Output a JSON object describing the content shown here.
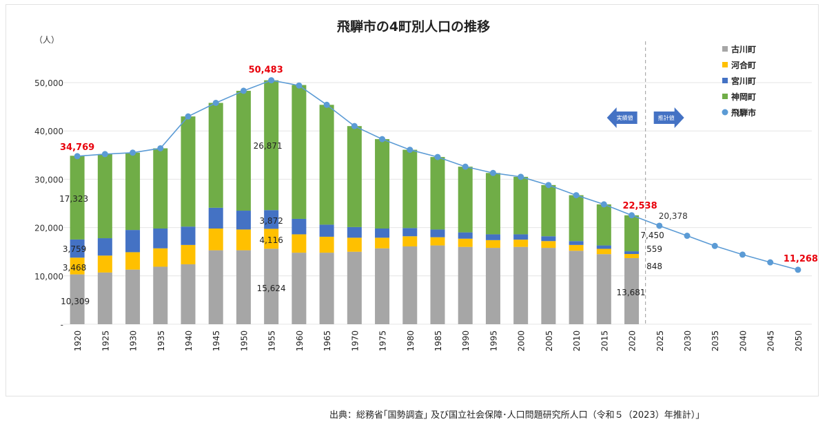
{
  "chart_data": {
    "type": "bar",
    "title": "飛騨市の4町別人口の推移",
    "ylabel": "（人）",
    "ylim": [
      0,
      60000
    ],
    "yticks": [
      0,
      10000,
      20000,
      30000,
      40000,
      50000
    ],
    "ytick_labels": [
      "-",
      "10,000",
      "20,000",
      "30,000",
      "40,000",
      "50,000"
    ],
    "categories": [
      "1920",
      "1925",
      "1930",
      "1935",
      "1940",
      "1945",
      "1950",
      "1955",
      "1960",
      "1965",
      "1970",
      "1975",
      "1980",
      "1985",
      "1990",
      "1995",
      "2000",
      "2005",
      "2010",
      "2015",
      "2020",
      "2025",
      "2030",
      "2035",
      "2040",
      "2045",
      "2050"
    ],
    "series": [
      {
        "name": "古川町",
        "color": "#a6a6a6",
        "values": [
          10309,
          10700,
          11300,
          11900,
          12400,
          15300,
          15300,
          15624,
          14800,
          14800,
          15000,
          15700,
          16100,
          16300,
          16000,
          15800,
          16000,
          15800,
          15200,
          14500,
          13681,
          null,
          null,
          null,
          null,
          null,
          null
        ]
      },
      {
        "name": "河合町",
        "color": "#ffc000",
        "values": [
          3468,
          3500,
          3600,
          3800,
          4000,
          4500,
          4300,
          4116,
          3800,
          3300,
          2900,
          2200,
          2100,
          1700,
          1700,
          1600,
          1500,
          1400,
          1200,
          1100,
          848,
          null,
          null,
          null,
          null,
          null,
          null
        ]
      },
      {
        "name": "宮川町",
        "color": "#4472c4",
        "values": [
          3759,
          3600,
          4600,
          4100,
          3800,
          4300,
          3900,
          3872,
          3200,
          2500,
          2200,
          1900,
          1700,
          1600,
          1300,
          1200,
          1100,
          1000,
          800,
          700,
          559,
          null,
          null,
          null,
          null,
          null,
          null
        ]
      },
      {
        "name": "神岡町",
        "color": "#70ad47",
        "values": [
          17323,
          17400,
          16000,
          16600,
          22800,
          21700,
          24800,
          26871,
          27700,
          24800,
          20900,
          18500,
          16200,
          15000,
          13600,
          12700,
          11900,
          10600,
          9500,
          8500,
          7450,
          null,
          null,
          null,
          null,
          null,
          null
        ]
      }
    ],
    "line": {
      "name": "飛騨市",
      "color": "#5b9bd5",
      "values": [
        34769,
        35200,
        35500,
        36400,
        43000,
        45800,
        48300,
        50483,
        49400,
        45400,
        41000,
        38300,
        36100,
        34600,
        32600,
        31300,
        30500,
        28800,
        26700,
        24800,
        22538,
        20378,
        18300,
        16200,
        14400,
        12800,
        11268
      ]
    },
    "bar_labels": [
      {
        "text": "10,309",
        "cat": "1920",
        "series": "古川町"
      },
      {
        "text": "3,468",
        "cat": "1920",
        "series": "河合町"
      },
      {
        "text": "3,759",
        "cat": "1920",
        "series": "宮川町"
      },
      {
        "text": "17,323",
        "cat": "1920",
        "series": "神岡町"
      },
      {
        "text": "15,624",
        "cat": "1955",
        "series": "古川町"
      },
      {
        "text": "4,116",
        "cat": "1955",
        "series": "河合町"
      },
      {
        "text": "3,872",
        "cat": "1955",
        "series": "宮川町"
      },
      {
        "text": "26,871",
        "cat": "1955",
        "series": "神岡町"
      },
      {
        "text": "13,681",
        "cat": "2020",
        "series": "古川町"
      },
      {
        "text": "848",
        "cat": "2020",
        "series": "河合町"
      },
      {
        "text": "559",
        "cat": "2020",
        "series": "宮川町"
      },
      {
        "text": "7,450",
        "cat": "2020",
        "series": "神岡町"
      }
    ],
    "highlight_labels": [
      {
        "text": "34,769",
        "cat": "1920"
      },
      {
        "text": "50,483",
        "cat": "1955"
      },
      {
        "text": "22,538",
        "cat": "2020"
      },
      {
        "text": "11,268",
        "cat": "2050"
      }
    ],
    "line_labels": [
      {
        "text": "20,378",
        "cat": "2025"
      }
    ],
    "arrows": {
      "left": "実績値",
      "right": "推計値"
    },
    "highlight_color": "#e8000b",
    "legend_position": "top-right"
  },
  "source": "出典：総務省｢国勢調査｣ 及び国立社会保障･人口問題研究所人口（令和５（2023）年推計）｣"
}
